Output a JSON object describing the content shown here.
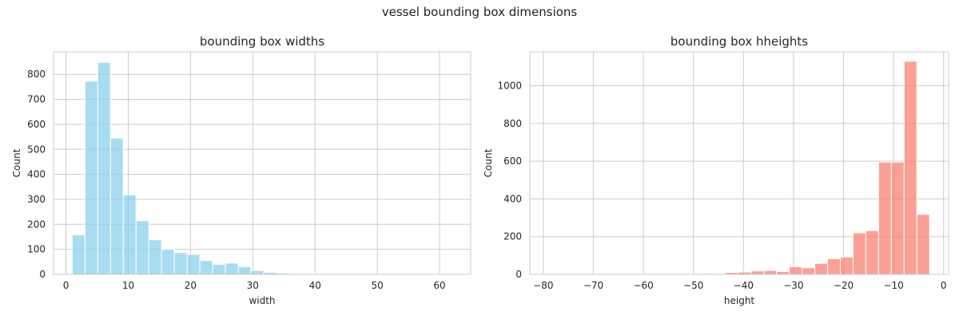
{
  "suptitle": "vessel bounding box dimensions",
  "chart_data": [
    {
      "type": "histogram",
      "title": "bounding box widths",
      "xlabel": "width",
      "ylabel": "Count",
      "color": "#87CEEB",
      "grid": true,
      "xlim": [
        -2,
        65
      ],
      "ylim": [
        0,
        890
      ],
      "xticks": [
        0,
        10,
        20,
        30,
        40,
        50,
        60
      ],
      "yticks": [
        0,
        100,
        200,
        300,
        400,
        500,
        600,
        700,
        800
      ],
      "bin_width": 2.05,
      "bins": [
        {
          "x0": 1.0,
          "x1": 3.05,
          "count": 158
        },
        {
          "x0": 3.05,
          "x1": 5.1,
          "count": 773
        },
        {
          "x0": 5.1,
          "x1": 7.15,
          "count": 848
        },
        {
          "x0": 7.15,
          "x1": 9.2,
          "count": 545
        },
        {
          "x0": 9.2,
          "x1": 11.25,
          "count": 318
        },
        {
          "x0": 11.25,
          "x1": 13.3,
          "count": 215
        },
        {
          "x0": 13.3,
          "x1": 15.35,
          "count": 138
        },
        {
          "x0": 15.35,
          "x1": 17.4,
          "count": 100
        },
        {
          "x0": 17.4,
          "x1": 19.45,
          "count": 87
        },
        {
          "x0": 19.45,
          "x1": 21.5,
          "count": 80
        },
        {
          "x0": 21.5,
          "x1": 23.55,
          "count": 55
        },
        {
          "x0": 23.55,
          "x1": 25.6,
          "count": 40
        },
        {
          "x0": 25.6,
          "x1": 27.65,
          "count": 45
        },
        {
          "x0": 27.65,
          "x1": 29.7,
          "count": 30
        },
        {
          "x0": 29.7,
          "x1": 31.75,
          "count": 15
        },
        {
          "x0": 31.75,
          "x1": 33.8,
          "count": 8
        },
        {
          "x0": 33.8,
          "x1": 35.85,
          "count": 5
        },
        {
          "x0": 35.85,
          "x1": 37.9,
          "count": 4
        },
        {
          "x0": 37.9,
          "x1": 39.95,
          "count": 3
        },
        {
          "x0": 39.95,
          "x1": 42.0,
          "count": 1
        },
        {
          "x0": 42.0,
          "x1": 44.05,
          "count": 1
        },
        {
          "x0": 44.05,
          "x1": 46.1,
          "count": 3
        },
        {
          "x0": 46.1,
          "x1": 48.15,
          "count": 1
        },
        {
          "x0": 48.15,
          "x1": 50.2,
          "count": 0
        },
        {
          "x0": 50.2,
          "x1": 52.25,
          "count": 1
        },
        {
          "x0": 52.25,
          "x1": 54.3,
          "count": 0
        },
        {
          "x0": 54.3,
          "x1": 56.35,
          "count": 0
        },
        {
          "x0": 56.35,
          "x1": 58.4,
          "count": 0
        },
        {
          "x0": 58.4,
          "x1": 60.45,
          "count": 0
        },
        {
          "x0": 60.45,
          "x1": 62.5,
          "count": 1
        }
      ]
    },
    {
      "type": "histogram",
      "title": "bounding box hheights",
      "xlabel": "height",
      "ylabel": "Count",
      "color": "#FA8072",
      "grid": true,
      "xlim": [
        -82.7,
        1.0
      ],
      "ylim": [
        0,
        1180
      ],
      "xticks": [
        -80,
        -70,
        -60,
        -50,
        -40,
        -30,
        -20,
        -10,
        0
      ],
      "yticks": [
        0,
        200,
        400,
        600,
        800,
        1000
      ],
      "bin_width": 2.55,
      "bins": [
        {
          "x0": -79.3,
          "x1": -76.75,
          "count": 1
        },
        {
          "x0": -76.75,
          "x1": -74.2,
          "count": 0
        },
        {
          "x0": -74.2,
          "x1": -71.65,
          "count": 0
        },
        {
          "x0": -71.65,
          "x1": -69.1,
          "count": 0
        },
        {
          "x0": -69.1,
          "x1": -66.55,
          "count": 0
        },
        {
          "x0": -66.55,
          "x1": -64.0,
          "count": 0
        },
        {
          "x0": -64.0,
          "x1": -61.45,
          "count": 0
        },
        {
          "x0": -61.45,
          "x1": -58.9,
          "count": 0
        },
        {
          "x0": -58.9,
          "x1": -56.35,
          "count": 1
        },
        {
          "x0": -56.35,
          "x1": -53.8,
          "count": 0
        },
        {
          "x0": -53.8,
          "x1": -51.25,
          "count": 1
        },
        {
          "x0": -51.25,
          "x1": -48.7,
          "count": 1
        },
        {
          "x0": -48.7,
          "x1": -46.15,
          "count": 5
        },
        {
          "x0": -46.15,
          "x1": -43.6,
          "count": 2
        },
        {
          "x0": -43.6,
          "x1": -41.05,
          "count": 10
        },
        {
          "x0": -41.05,
          "x1": -38.5,
          "count": 12
        },
        {
          "x0": -38.5,
          "x1": -35.95,
          "count": 18
        },
        {
          "x0": -35.95,
          "x1": -33.4,
          "count": 20
        },
        {
          "x0": -33.4,
          "x1": -30.85,
          "count": 15
        },
        {
          "x0": -30.85,
          "x1": -28.3,
          "count": 40
        },
        {
          "x0": -28.3,
          "x1": -25.75,
          "count": 35
        },
        {
          "x0": -25.75,
          "x1": -23.2,
          "count": 58
        },
        {
          "x0": -23.2,
          "x1": -20.65,
          "count": 83
        },
        {
          "x0": -20.65,
          "x1": -18.1,
          "count": 92
        },
        {
          "x0": -18.1,
          "x1": -15.55,
          "count": 220
        },
        {
          "x0": -15.55,
          "x1": -13.0,
          "count": 232
        },
        {
          "x0": -13.0,
          "x1": -10.45,
          "count": 595
        },
        {
          "x0": -10.45,
          "x1": -7.9,
          "count": 595
        },
        {
          "x0": -7.9,
          "x1": -5.35,
          "count": 1130
        },
        {
          "x0": -5.35,
          "x1": -2.8,
          "count": 318
        }
      ]
    }
  ]
}
